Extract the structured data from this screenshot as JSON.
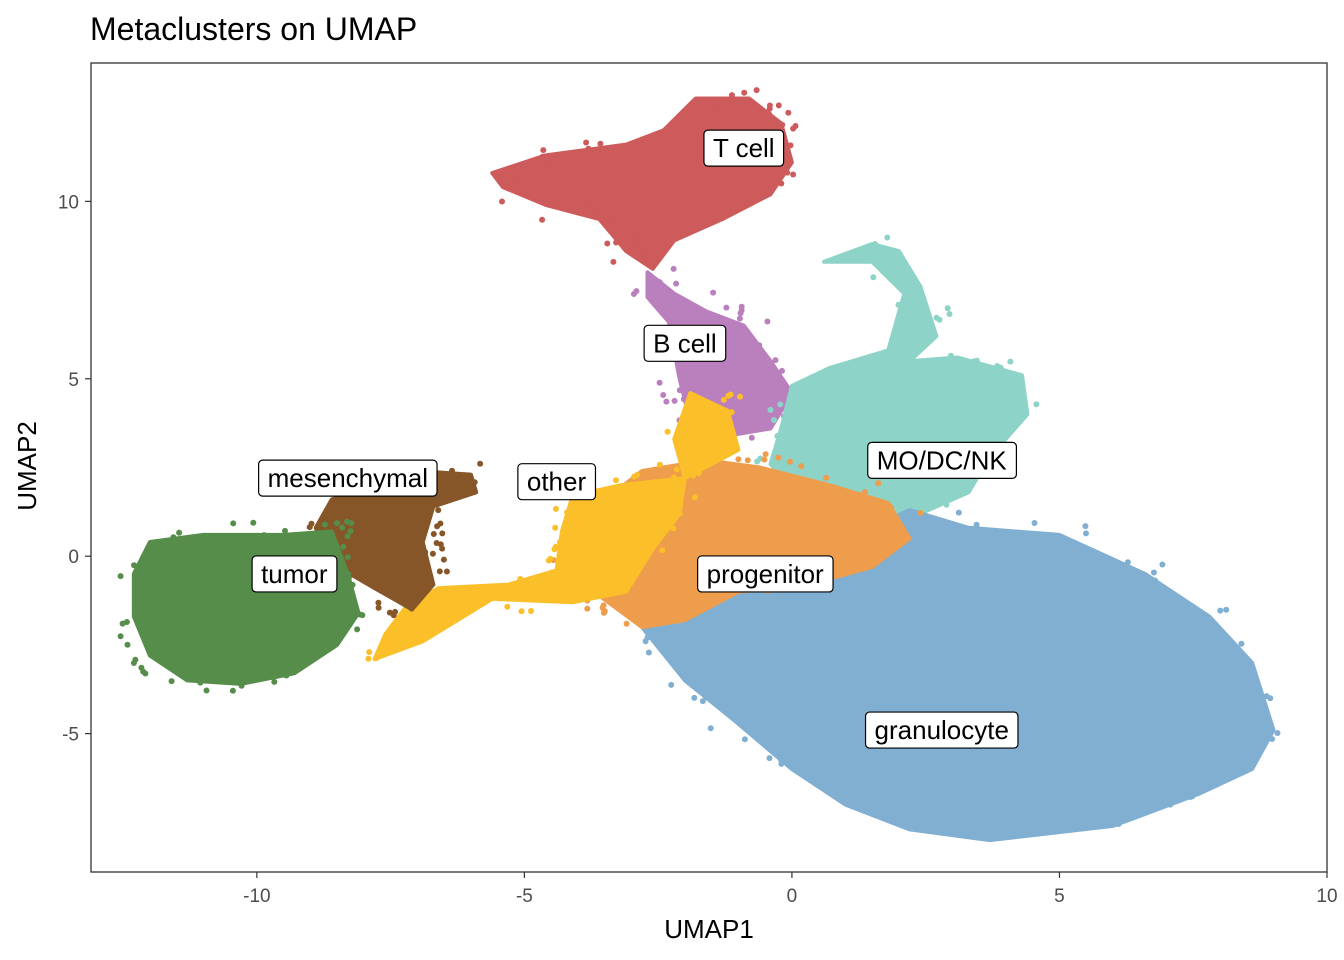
{
  "chart_data": {
    "type": "scatter",
    "title": "Metaclusters on UMAP",
    "xlabel": "UMAP1",
    "ylabel": "UMAP2",
    "xlim": [
      -13.1,
      10
    ],
    "ylim": [
      -8.9,
      13.9
    ],
    "x_ticks": [
      -10,
      -5,
      0,
      5,
      10
    ],
    "x_tick_labels": [
      "-10",
      "-5",
      "0",
      "5",
      "10"
    ],
    "y_ticks": [
      -5,
      0,
      5,
      10
    ],
    "y_tick_labels": [
      "-5",
      "0",
      "5",
      "10"
    ],
    "grid": false,
    "legend": "none",
    "clusters": [
      {
        "name": "T cell",
        "color": "#CD5B5B",
        "label_at": [
          -0.9,
          11.5
        ],
        "region": [
          [
            -1.8,
            12.9
          ],
          [
            -0.8,
            12.9
          ],
          [
            -0.2,
            12.2
          ],
          [
            0.0,
            11.1
          ],
          [
            -0.4,
            10.2
          ],
          [
            -1.3,
            9.5
          ],
          [
            -2.2,
            8.9
          ],
          [
            -2.6,
            8.1
          ],
          [
            -3.1,
            8.6
          ],
          [
            -3.6,
            9.5
          ],
          [
            -4.6,
            9.9
          ],
          [
            -5.4,
            10.4
          ],
          [
            -5.6,
            10.8
          ],
          [
            -4.6,
            11.3
          ],
          [
            -3.1,
            11.6
          ],
          [
            -2.4,
            12.0
          ]
        ]
      },
      {
        "name": "B cell",
        "color": "#BA7FBD",
        "label_at": [
          -2.0,
          6.0
        ],
        "region": [
          [
            -2.7,
            8.0
          ],
          [
            -2.2,
            7.4
          ],
          [
            -1.6,
            6.9
          ],
          [
            -0.9,
            6.5
          ],
          [
            -0.4,
            5.5
          ],
          [
            0.0,
            4.6
          ],
          [
            -0.4,
            3.6
          ],
          [
            -1.2,
            3.4
          ],
          [
            -1.9,
            3.8
          ],
          [
            -2.1,
            5.0
          ],
          [
            -2.3,
            6.6
          ],
          [
            -2.7,
            7.3
          ]
        ]
      },
      {
        "name": "MO/DC/NK",
        "color": "#8ED3C7",
        "label_at": [
          2.8,
          2.7
        ],
        "region": [
          [
            0.6,
            8.3
          ],
          [
            1.5,
            8.8
          ],
          [
            2.0,
            8.6
          ],
          [
            2.4,
            7.6
          ],
          [
            2.7,
            6.2
          ],
          [
            2.2,
            5.5
          ],
          [
            3.1,
            5.6
          ],
          [
            4.3,
            5.1
          ],
          [
            4.4,
            4.0
          ],
          [
            3.7,
            2.8
          ],
          [
            3.3,
            1.8
          ],
          [
            2.4,
            1.2
          ],
          [
            1.2,
            1.2
          ],
          [
            0.2,
            1.6
          ],
          [
            -0.4,
            2.6
          ],
          [
            -0.2,
            3.6
          ],
          [
            0.0,
            4.8
          ],
          [
            0.7,
            5.3
          ],
          [
            1.8,
            5.8
          ],
          [
            2.1,
            7.4
          ],
          [
            1.5,
            8.3
          ]
        ]
      },
      {
        "name": "granulocyte",
        "color": "#80AFD2",
        "label_at": [
          2.8,
          -4.9
        ],
        "region": [
          [
            2.2,
            1.3
          ],
          [
            3.3,
            0.8
          ],
          [
            5.0,
            0.6
          ],
          [
            6.6,
            -0.5
          ],
          [
            7.8,
            -1.7
          ],
          [
            8.6,
            -3.0
          ],
          [
            9.0,
            -4.9
          ],
          [
            8.6,
            -6.0
          ],
          [
            7.6,
            -6.7
          ],
          [
            6.0,
            -7.6
          ],
          [
            3.7,
            -8.0
          ],
          [
            2.2,
            -7.7
          ],
          [
            1.0,
            -7.0
          ],
          [
            0.0,
            -6.0
          ],
          [
            -1.1,
            -4.6
          ],
          [
            -2.0,
            -3.5
          ],
          [
            -2.8,
            -2.0
          ],
          [
            -2.0,
            -1.0
          ],
          [
            0.0,
            -0.3
          ],
          [
            1.5,
            0.8
          ]
        ]
      },
      {
        "name": "progenitor",
        "color": "#EE9D4C",
        "label_at": [
          -0.5,
          -0.5
        ],
        "region": [
          [
            -4.0,
            1.0
          ],
          [
            -2.8,
            2.4
          ],
          [
            -1.6,
            2.7
          ],
          [
            -0.6,
            2.5
          ],
          [
            0.7,
            2.0
          ],
          [
            1.8,
            1.5
          ],
          [
            2.2,
            0.5
          ],
          [
            1.5,
            -0.3
          ],
          [
            0.3,
            -0.8
          ],
          [
            -1.0,
            -1.0
          ],
          [
            -2.0,
            -1.8
          ],
          [
            -2.8,
            -2.0
          ],
          [
            -3.7,
            -1.0
          ],
          [
            -4.3,
            -0.3
          ]
        ]
      },
      {
        "name": "other",
        "color": "#FBBF2A",
        "label_at": [
          -4.4,
          2.1
        ],
        "region": [
          [
            -1.9,
            4.6
          ],
          [
            -1.2,
            4.1
          ],
          [
            -1.0,
            3.0
          ],
          [
            -2.0,
            2.2
          ],
          [
            -3.2,
            2.0
          ],
          [
            -4.1,
            1.7
          ],
          [
            -4.3,
            0.7
          ],
          [
            -4.4,
            -0.4
          ],
          [
            -5.3,
            -0.8
          ],
          [
            -6.6,
            -0.9
          ],
          [
            -7.2,
            -1.4
          ],
          [
            -7.6,
            -2.2
          ],
          [
            -7.8,
            -2.9
          ],
          [
            -6.9,
            -2.4
          ],
          [
            -5.6,
            -1.2
          ],
          [
            -4.1,
            -1.3
          ],
          [
            -3.1,
            -1.0
          ],
          [
            -2.6,
            0.2
          ],
          [
            -2.1,
            1.2
          ],
          [
            -2.0,
            2.2
          ],
          [
            -2.2,
            3.3
          ]
        ]
      },
      {
        "name": "mesenchymal",
        "color": "#875628",
        "label_at": [
          -8.3,
          2.2
        ],
        "region": [
          [
            -8.6,
            1.6
          ],
          [
            -7.0,
            2.4
          ],
          [
            -6.0,
            2.3
          ],
          [
            -5.9,
            1.8
          ],
          [
            -6.7,
            1.4
          ],
          [
            -6.9,
            0.4
          ],
          [
            -6.7,
            -0.8
          ],
          [
            -7.1,
            -1.5
          ],
          [
            -7.8,
            -0.9
          ],
          [
            -8.6,
            -0.2
          ],
          [
            -8.9,
            0.8
          ]
        ]
      },
      {
        "name": "tumor",
        "color": "#568D4A",
        "label_at": [
          -9.3,
          -0.5
        ],
        "region": [
          [
            -12.3,
            -0.5
          ],
          [
            -12.0,
            0.4
          ],
          [
            -11.0,
            0.6
          ],
          [
            -9.5,
            0.6
          ],
          [
            -8.6,
            0.7
          ],
          [
            -8.3,
            -0.5
          ],
          [
            -8.1,
            -1.6
          ],
          [
            -8.5,
            -2.5
          ],
          [
            -9.3,
            -3.3
          ],
          [
            -10.3,
            -3.6
          ],
          [
            -11.3,
            -3.5
          ],
          [
            -12.0,
            -2.8
          ],
          [
            -12.3,
            -1.7
          ]
        ]
      }
    ]
  }
}
